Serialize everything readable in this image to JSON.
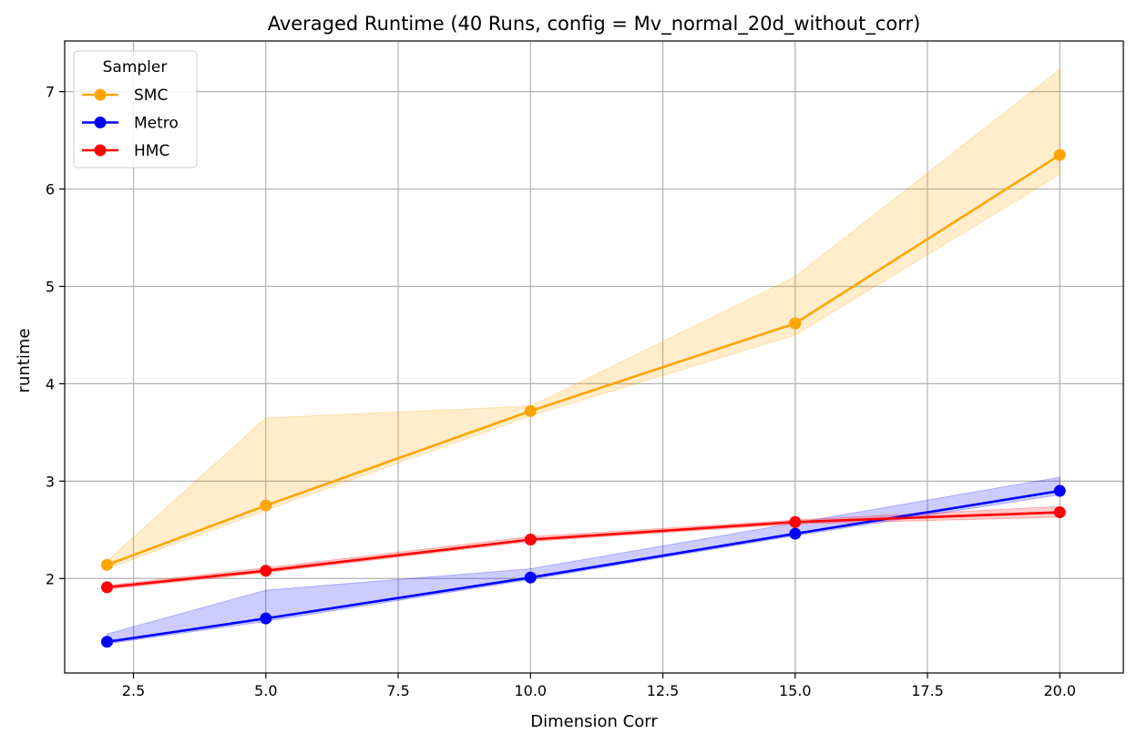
{
  "chart_data": {
    "type": "line",
    "title": "Averaged Runtime (40 Runs, config = Mv_normal_20d_without_corr)",
    "xlabel": "Dimension Corr",
    "ylabel": "runtime",
    "xlim": [
      1.2,
      21.2
    ],
    "ylim": [
      1.03,
      7.52
    ],
    "xticks": [
      2.5,
      5.0,
      7.5,
      10.0,
      12.5,
      15.0,
      17.5,
      20.0
    ],
    "xtick_labels": [
      "2.5",
      "5.0",
      "7.5",
      "10.0",
      "12.5",
      "15.0",
      "17.5",
      "20.0"
    ],
    "yticks": [
      2,
      3,
      4,
      5,
      6,
      7
    ],
    "ytick_labels": [
      "2",
      "3",
      "4",
      "5",
      "6",
      "7"
    ],
    "grid": true,
    "legend": {
      "title": "Sampler",
      "placement": "top-left"
    },
    "x": [
      2,
      5,
      10,
      15,
      20
    ],
    "series": [
      {
        "name": "SMC",
        "color": "#FFA500",
        "values": [
          2.14,
          2.75,
          3.72,
          4.62,
          6.35
        ],
        "band_low": [
          2.1,
          2.7,
          3.67,
          4.5,
          6.15
        ],
        "band_high": [
          2.18,
          3.65,
          3.77,
          5.1,
          7.23
        ]
      },
      {
        "name": "Metro",
        "color": "#0000FF",
        "values": [
          1.35,
          1.59,
          2.01,
          2.46,
          2.9
        ],
        "band_low": [
          1.33,
          1.56,
          1.99,
          2.44,
          2.86
        ],
        "band_high": [
          1.43,
          1.88,
          2.1,
          2.57,
          3.04
        ]
      },
      {
        "name": "HMC",
        "color": "#FF0000",
        "values": [
          1.91,
          2.08,
          2.4,
          2.58,
          2.68
        ],
        "band_low": [
          1.89,
          2.06,
          2.38,
          2.56,
          2.63
        ],
        "band_high": [
          1.93,
          2.11,
          2.43,
          2.6,
          2.74
        ]
      }
    ]
  }
}
